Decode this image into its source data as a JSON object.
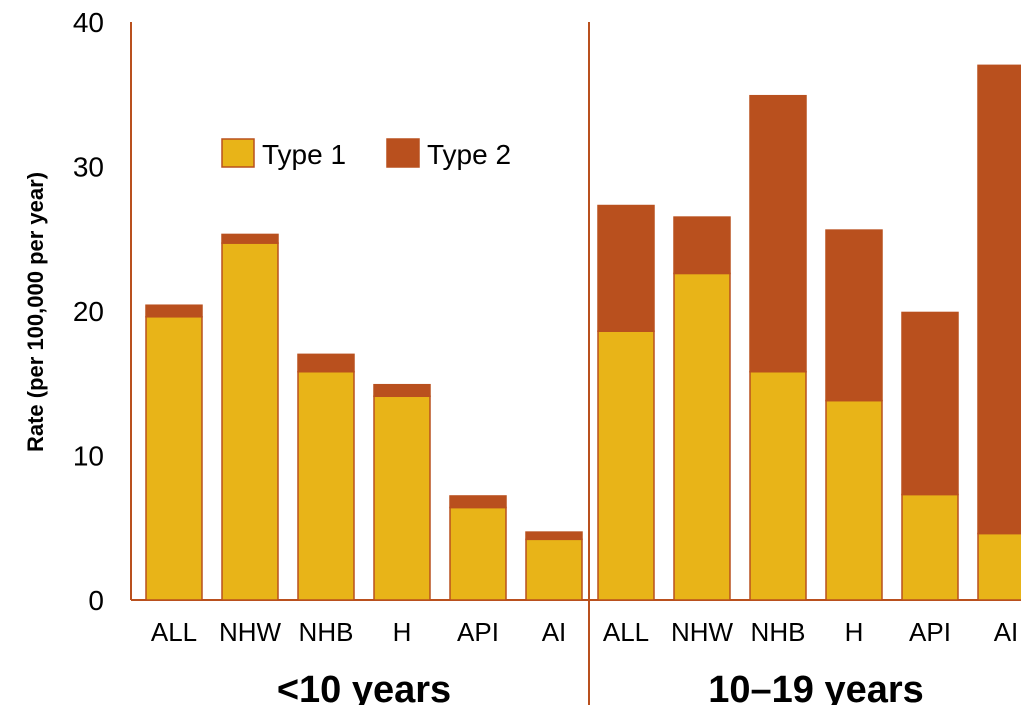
{
  "chart_data": {
    "type": "bar",
    "stacked": true,
    "ylabel": "Rate (per 100,000 per year)",
    "ylim": [
      0,
      40
    ],
    "yticks": [
      "0",
      "10",
      "20",
      "30",
      "40"
    ],
    "grid": false,
    "legend_placement": "upper-left",
    "groups": [
      {
        "label": "<10 years",
        "categories": [
          "ALL",
          "NHW",
          "NHB",
          "H",
          "API",
          "AI"
        ],
        "series": [
          {
            "name": "Type 1",
            "values": [
              19.6,
              24.7,
              15.8,
              14.1,
              6.4,
              4.2
            ]
          },
          {
            "name": "Type 2",
            "values": [
              0.8,
              0.6,
              1.2,
              0.8,
              0.8,
              0.5
            ]
          }
        ]
      },
      {
        "label": "10–19 years",
        "categories": [
          "ALL",
          "NHW",
          "NHB",
          "H",
          "API",
          "AI"
        ],
        "series": [
          {
            "name": "Type 1",
            "values": [
              18.6,
              22.6,
              15.8,
              13.8,
              7.3,
              4.6
            ]
          },
          {
            "name": "Type 2",
            "values": [
              8.7,
              3.9,
              19.1,
              11.8,
              12.6,
              32.4
            ]
          }
        ]
      }
    ],
    "colors": {
      "Type 1": "#E8B418",
      "Type 2": "#B9501E",
      "axis": "#B9501E",
      "bar_edge": "#B9501E"
    }
  }
}
